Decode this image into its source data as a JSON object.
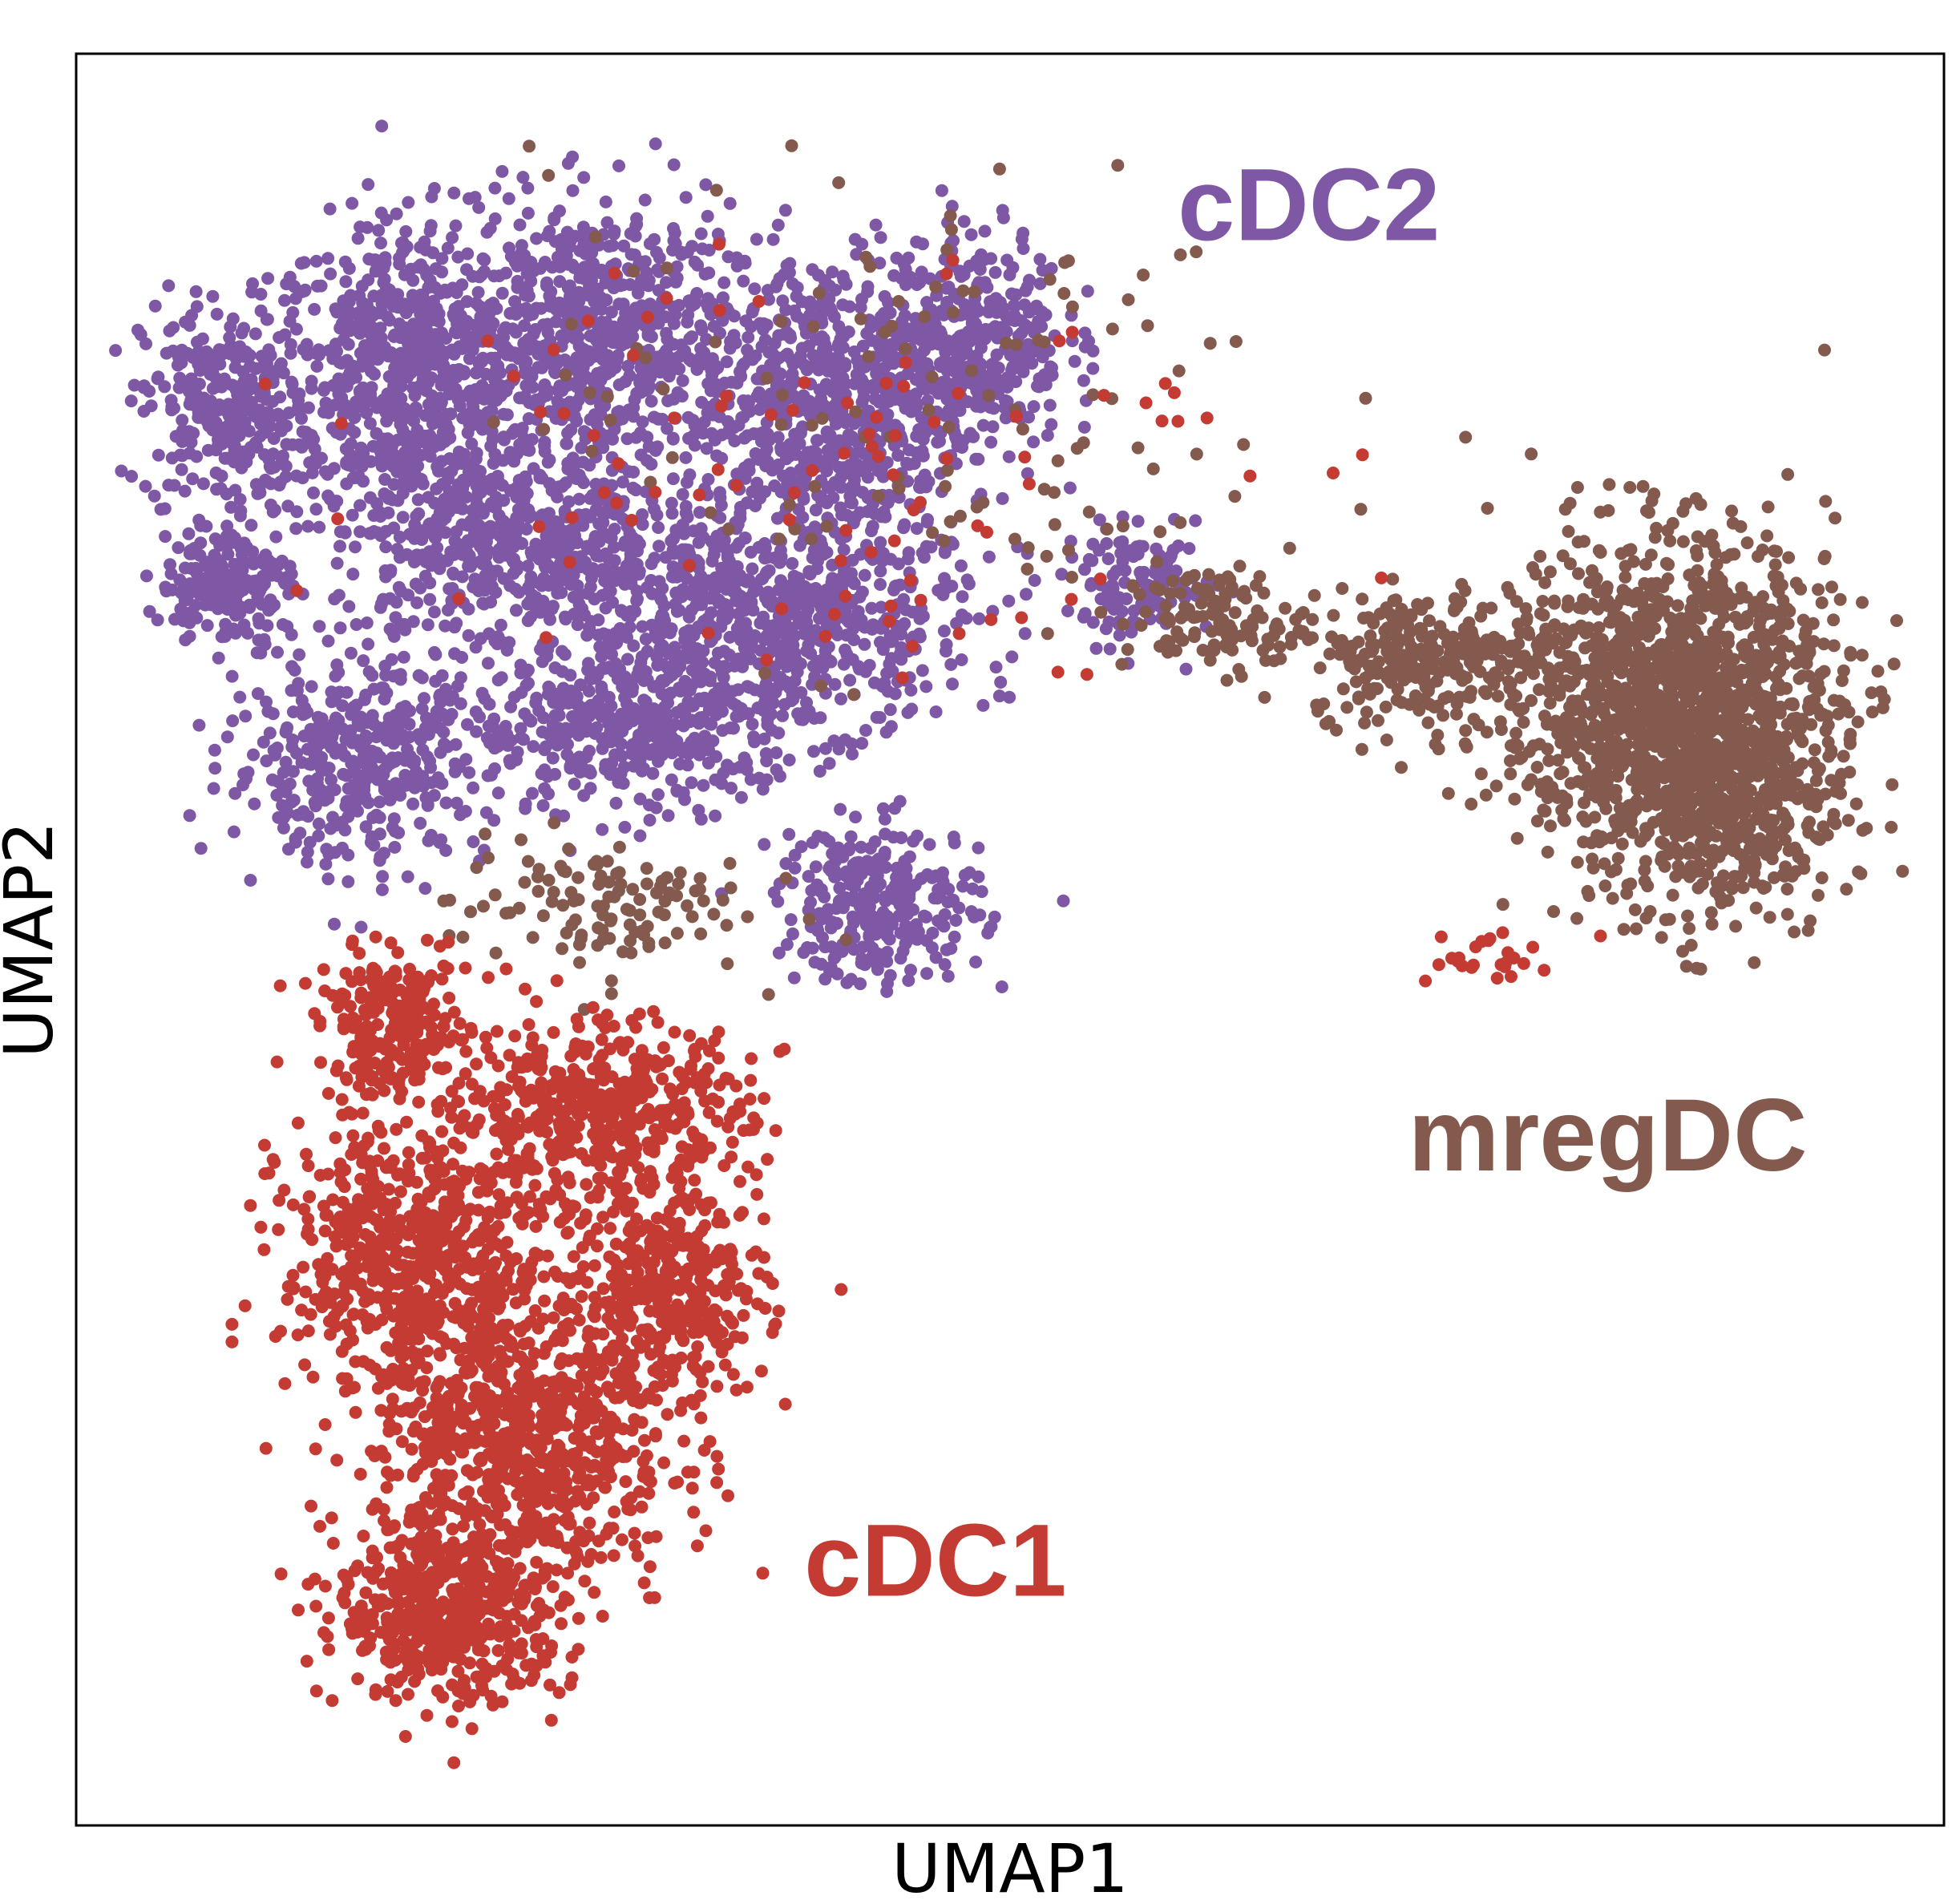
{
  "chart_data": {
    "type": "scatter",
    "title": "",
    "xlabel": "UMAP1",
    "ylabel": "UMAP2",
    "xlim": [
      0,
      100
    ],
    "ylim": [
      0,
      100
    ],
    "ticks": "none",
    "grid": false,
    "legend": "none",
    "series": [
      {
        "name": "cDC2",
        "color": "#7e57a5",
        "blobs": [
          {
            "cx": 18,
            "cy": 82,
            "rx": 7.5,
            "ry": 8.5,
            "n": 700
          },
          {
            "cx": 8,
            "cy": 80,
            "rx": 4.5,
            "ry": 6,
            "n": 300
          },
          {
            "cx": 28,
            "cy": 84,
            "rx": 7,
            "ry": 7.5,
            "n": 600
          },
          {
            "cx": 40,
            "cy": 80,
            "rx": 8,
            "ry": 9,
            "n": 700
          },
          {
            "cx": 48,
            "cy": 84,
            "rx": 5,
            "ry": 6,
            "n": 350
          },
          {
            "cx": 24,
            "cy": 72,
            "rx": 10,
            "ry": 6,
            "n": 600
          },
          {
            "cx": 38,
            "cy": 68,
            "rx": 10,
            "ry": 6,
            "n": 600
          },
          {
            "cx": 8,
            "cy": 70,
            "rx": 3.5,
            "ry": 3.5,
            "n": 180
          },
          {
            "cx": 15,
            "cy": 60,
            "rx": 7,
            "ry": 5.5,
            "n": 400
          },
          {
            "cx": 30,
            "cy": 62,
            "rx": 9,
            "ry": 5,
            "n": 450
          },
          {
            "cx": 43,
            "cy": 52,
            "rx": 5.5,
            "ry": 4.5,
            "n": 280
          },
          {
            "cx": 57,
            "cy": 70,
            "rx": 4,
            "ry": 3,
            "n": 120
          }
        ]
      },
      {
        "name": "mregDC",
        "color": "#845a4f",
        "blobs": [
          {
            "cx": 85,
            "cy": 64,
            "rx": 9,
            "ry": 9,
            "n": 1200
          },
          {
            "cx": 88,
            "cy": 58,
            "rx": 7,
            "ry": 8,
            "n": 500
          },
          {
            "cx": 72,
            "cy": 66,
            "rx": 6,
            "ry": 3.5,
            "n": 250
          },
          {
            "cx": 61,
            "cy": 68,
            "rx": 5,
            "ry": 3,
            "n": 120
          },
          {
            "cx": 28,
            "cy": 52,
            "rx": 8,
            "ry": 4,
            "n": 120
          },
          {
            "cx": 45,
            "cy": 80,
            "rx": 20,
            "ry": 14,
            "n": 130
          }
        ]
      },
      {
        "name": "cDC1",
        "color": "#c43b33",
        "blobs": [
          {
            "cx": 24,
            "cy": 22,
            "rx": 8,
            "ry": 9,
            "n": 800
          },
          {
            "cx": 18,
            "cy": 32,
            "rx": 7,
            "ry": 8,
            "n": 600
          },
          {
            "cx": 28,
            "cy": 40,
            "rx": 8,
            "ry": 5.5,
            "n": 500
          },
          {
            "cx": 20,
            "cy": 12,
            "rx": 6,
            "ry": 5,
            "n": 500
          },
          {
            "cx": 32,
            "cy": 30,
            "rx": 5,
            "ry": 6,
            "n": 350
          },
          {
            "cx": 17,
            "cy": 45,
            "rx": 4,
            "ry": 4,
            "n": 250
          },
          {
            "cx": 40,
            "cy": 78,
            "rx": 22,
            "ry": 13,
            "n": 100
          },
          {
            "cx": 75,
            "cy": 49,
            "rx": 4,
            "ry": 2,
            "n": 25
          }
        ]
      }
    ],
    "annotations": [
      {
        "text": "cDC2",
        "color": "#7e57a5",
        "x": 66,
        "y": 91
      },
      {
        "text": "mregDC",
        "color": "#845a4f",
        "x": 82,
        "y": 38.5
      },
      {
        "text": "cDC1",
        "color": "#c43b33",
        "x": 46,
        "y": 14.5
      }
    ]
  }
}
